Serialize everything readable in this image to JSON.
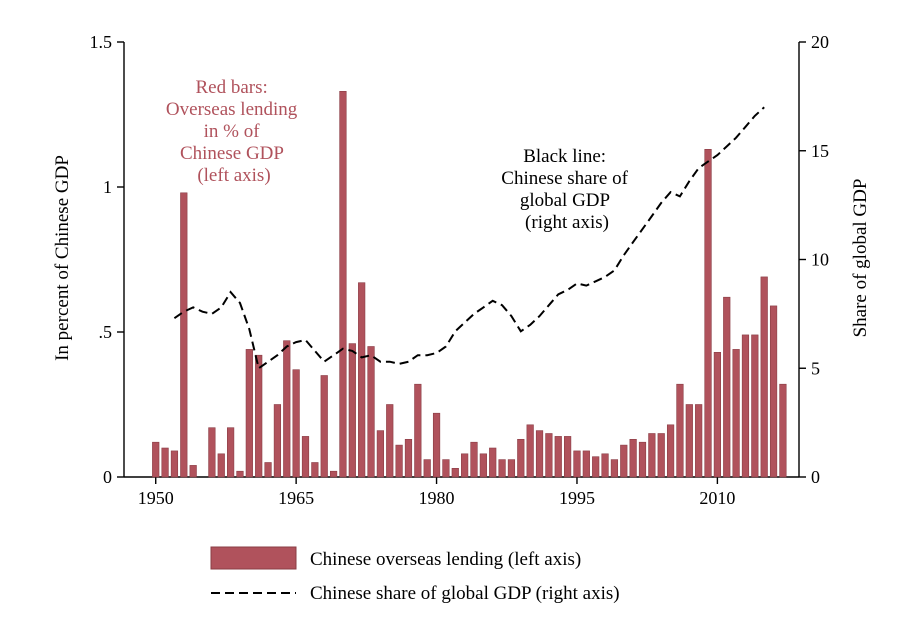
{
  "chart_data": {
    "type": "bar+line",
    "title": "",
    "xlabel": "",
    "ylabel_left": "In percent of Chinese GDP",
    "ylabel_right": "Share of global GDP",
    "xlim": [
      1948,
      2020
    ],
    "ylim_left": [
      0,
      1.5
    ],
    "ylim_right": [
      0,
      20
    ],
    "x_ticks": [
      1950,
      1965,
      1980,
      1995,
      2010
    ],
    "y_left_ticks": [
      {
        "value": 0,
        "label": "0"
      },
      {
        "value": 0.5,
        "label": ".5"
      },
      {
        "value": 1,
        "label": "1"
      },
      {
        "value": 1.5,
        "label": "1.5"
      }
    ],
    "y_right_ticks": [
      {
        "value": 0,
        "label": "0"
      },
      {
        "value": 5,
        "label": "5"
      },
      {
        "value": 10,
        "label": "10"
      },
      {
        "value": 15,
        "label": "15"
      },
      {
        "value": 20,
        "label": "20"
      }
    ],
    "grid": false,
    "legend_position": "bottom",
    "series": [
      {
        "name": "Chinese overseas lending (left axis)",
        "type": "bar",
        "axis": "left",
        "color": "#b0525c",
        "edge_color": "#8a3d45",
        "x": [
          1950,
          1951,
          1952,
          1953,
          1954,
          1956,
          1957,
          1958,
          1959,
          1960,
          1961,
          1962,
          1963,
          1964,
          1965,
          1966,
          1967,
          1968,
          1969,
          1970,
          1971,
          1972,
          1973,
          1974,
          1975,
          1976,
          1977,
          1978,
          1979,
          1980,
          1981,
          1982,
          1983,
          1984,
          1985,
          1986,
          1987,
          1988,
          1989,
          1990,
          1991,
          1992,
          1993,
          1994,
          1995,
          1996,
          1997,
          1998,
          1999,
          2000,
          2001,
          2002,
          2003,
          2004,
          2005,
          2006,
          2007,
          2008,
          2009,
          2010,
          2011,
          2012,
          2013,
          2014,
          2015,
          2016,
          2017
        ],
        "values": [
          0.12,
          0.1,
          0.09,
          0.98,
          0.04,
          0.17,
          0.08,
          0.17,
          0.02,
          0.44,
          0.42,
          0.05,
          0.25,
          0.47,
          0.37,
          0.14,
          0.05,
          0.35,
          0.02,
          1.33,
          0.46,
          0.67,
          0.45,
          0.16,
          0.25,
          0.11,
          0.13,
          0.32,
          0.06,
          0.22,
          0.06,
          0.03,
          0.08,
          0.12,
          0.08,
          0.1,
          0.06,
          0.06,
          0.13,
          0.18,
          0.16,
          0.15,
          0.14,
          0.14,
          0.09,
          0.09,
          0.07,
          0.08,
          0.06,
          0.11,
          0.13,
          0.12,
          0.15,
          0.15,
          0.18,
          0.32,
          0.25,
          0.25,
          1.13,
          0.43,
          0.62,
          0.44,
          0.49,
          0.49,
          0.69,
          0.59,
          0.32
        ]
      },
      {
        "name": "Chinese share of global GDP (right axis)",
        "type": "line",
        "axis": "right",
        "style": "dashed",
        "color": "#000000",
        "x": [
          1952,
          1953,
          1954,
          1955,
          1956,
          1957,
          1958,
          1959,
          1960,
          1961,
          1962,
          1963,
          1964,
          1965,
          1966,
          1967,
          1968,
          1969,
          1970,
          1971,
          1972,
          1973,
          1974,
          1975,
          1976,
          1977,
          1978,
          1979,
          1980,
          1981,
          1982,
          1983,
          1984,
          1985,
          1986,
          1987,
          1988,
          1989,
          1990,
          1991,
          1992,
          1993,
          1994,
          1995,
          1996,
          1997,
          1998,
          1999,
          2000,
          2001,
          2002,
          2003,
          2004,
          2005,
          2006,
          2007,
          2008,
          2009,
          2010,
          2011,
          2012,
          2013,
          2014,
          2015
        ],
        "values": [
          7.3,
          7.6,
          7.8,
          7.6,
          7.5,
          7.8,
          8.5,
          8.0,
          6.8,
          5.0,
          5.3,
          5.6,
          6.0,
          6.2,
          6.3,
          5.8,
          5.3,
          5.6,
          5.9,
          5.8,
          5.5,
          5.6,
          5.3,
          5.3,
          5.2,
          5.3,
          5.6,
          5.6,
          5.7,
          6.0,
          6.7,
          7.1,
          7.5,
          7.8,
          8.1,
          7.9,
          7.4,
          6.7,
          7.0,
          7.4,
          7.9,
          8.4,
          8.6,
          8.9,
          8.8,
          9.0,
          9.2,
          9.5,
          10.2,
          10.8,
          11.4,
          12.0,
          12.6,
          13.1,
          12.9,
          13.6,
          14.2,
          14.5,
          14.8,
          15.2,
          15.6,
          16.1,
          16.6,
          17.0
        ]
      }
    ],
    "annotations": [
      {
        "lines": [
          "Red bars:",
          "Overseas lending",
          "in % of",
          "Chinese GDP",
          "(left axis)"
        ],
        "color": "#b0525c"
      },
      {
        "lines": [
          "Black line:",
          "Chinese share of",
          "global GDP",
          "(right axis)"
        ],
        "color": "#000000"
      }
    ]
  }
}
